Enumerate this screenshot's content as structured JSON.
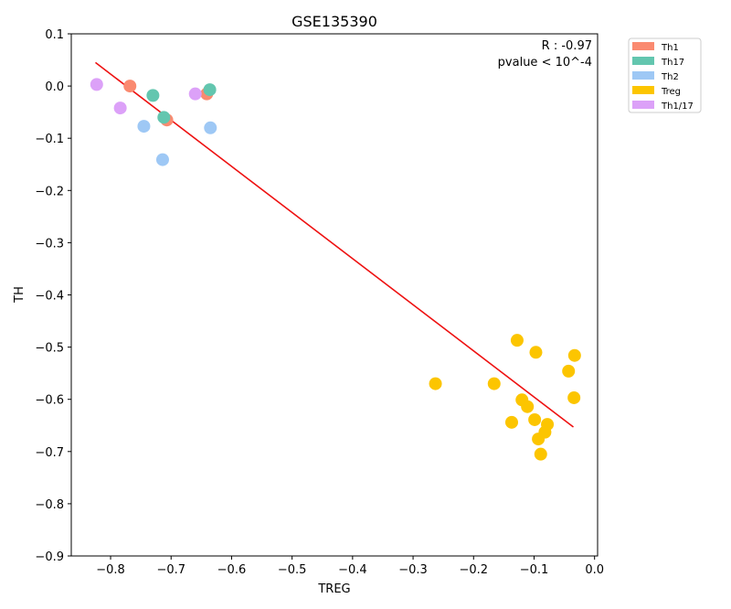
{
  "chart_data": {
    "type": "scatter",
    "title": "GSE135390",
    "xlabel": "TREG",
    "ylabel": "TH",
    "xlim": [
      -0.865,
      0.005
    ],
    "ylim": [
      -0.9,
      0.1
    ],
    "xticks": [
      -0.8,
      -0.7,
      -0.6,
      -0.5,
      -0.4,
      -0.3,
      -0.2,
      -0.1,
      0.0
    ],
    "xtick_labels": [
      "−0.8",
      "−0.7",
      "−0.6",
      "−0.5",
      "−0.4",
      "−0.3",
      "−0.2",
      "−0.1",
      "0.0"
    ],
    "yticks": [
      0.1,
      0.0,
      -0.1,
      -0.2,
      -0.3,
      -0.4,
      -0.5,
      -0.6,
      -0.7,
      -0.8,
      -0.9
    ],
    "ytick_labels": [
      "0.1",
      "0.0",
      "−0.1",
      "−0.2",
      "−0.3",
      "−0.4",
      "−0.5",
      "−0.6",
      "−0.7",
      "−0.8",
      "−0.9"
    ],
    "grid": false,
    "legend_position": "outside-top-right",
    "annotation": {
      "r_text": "R : -0.97",
      "p_text": "pvalue < 10^-4"
    },
    "regression_line": {
      "x": [
        -0.825,
        -0.035
      ],
      "y": [
        0.045,
        -0.653
      ],
      "color": "#ee1111"
    },
    "series": [
      {
        "name": "Th1",
        "color": "#fa8a70",
        "points": [
          [
            -0.768,
            0.0
          ],
          [
            -0.707,
            -0.065
          ],
          [
            -0.641,
            -0.015
          ]
        ]
      },
      {
        "name": "Th17",
        "color": "#63c6af",
        "points": [
          [
            -0.73,
            -0.018
          ],
          [
            -0.712,
            -0.06
          ],
          [
            -0.636,
            -0.007
          ]
        ]
      },
      {
        "name": "Th2",
        "color": "#9ec8f5",
        "points": [
          [
            -0.745,
            -0.077
          ],
          [
            -0.714,
            -0.141
          ],
          [
            -0.635,
            -0.08
          ]
        ]
      },
      {
        "name": "Treg",
        "color": "#fcc500",
        "points": [
          [
            -0.263,
            -0.57
          ],
          [
            -0.166,
            -0.57
          ],
          [
            -0.128,
            -0.487
          ],
          [
            -0.097,
            -0.51
          ],
          [
            -0.033,
            -0.516
          ],
          [
            -0.043,
            -0.546
          ],
          [
            -0.12,
            -0.601
          ],
          [
            -0.111,
            -0.614
          ],
          [
            -0.034,
            -0.597
          ],
          [
            -0.137,
            -0.644
          ],
          [
            -0.099,
            -0.639
          ],
          [
            -0.078,
            -0.648
          ],
          [
            -0.082,
            -0.663
          ],
          [
            -0.093,
            -0.676
          ],
          [
            -0.089,
            -0.705
          ]
        ]
      },
      {
        "name": "Th1/17",
        "color": "#dca1f8",
        "points": [
          [
            -0.823,
            0.003
          ],
          [
            -0.784,
            -0.042
          ],
          [
            -0.66,
            -0.015
          ]
        ]
      }
    ]
  }
}
